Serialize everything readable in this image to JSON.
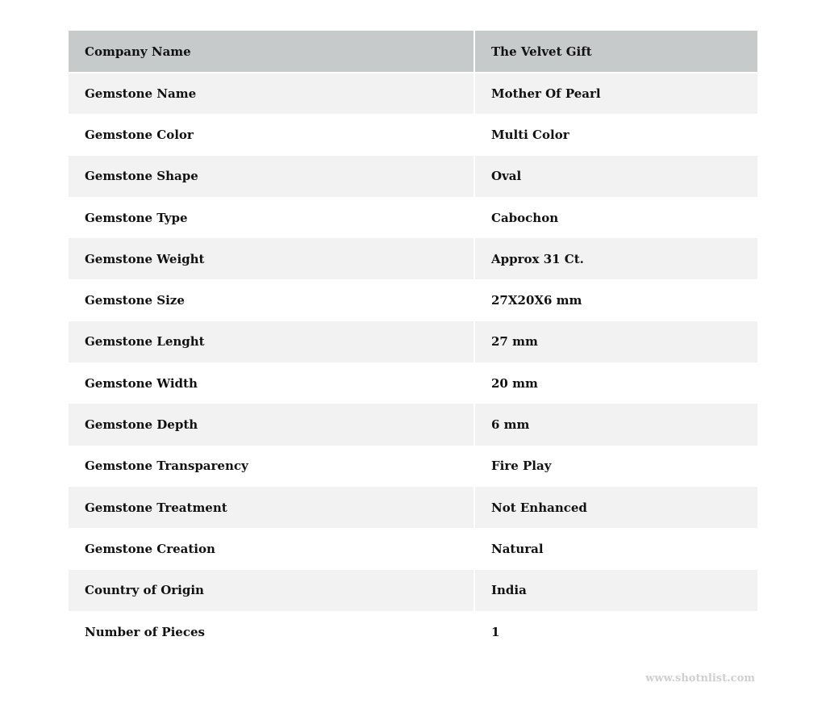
{
  "table": {
    "header": {
      "label": "Company Name",
      "value": "The Velvet Gift"
    },
    "rows": [
      {
        "label": "Gemstone Name",
        "value": "Mother Of Pearl"
      },
      {
        "label": "Gemstone Color",
        "value": "Multi Color"
      },
      {
        "label": "Gemstone Shape",
        "value": "Oval"
      },
      {
        "label": "Gemstone Type",
        "value": "Cabochon"
      },
      {
        "label": "Gemstone Weight",
        "value": "Approx 31 Ct."
      },
      {
        "label": "Gemstone Size",
        "value": "27X20X6 mm"
      },
      {
        "label": "Gemstone Lenght",
        "value": "27 mm"
      },
      {
        "label": "Gemstone Width",
        "value": "20 mm"
      },
      {
        "label": "Gemstone Depth",
        "value": "6 mm"
      },
      {
        "label": "Gemstone Transparency",
        "value": "Fire Play"
      },
      {
        "label": "Gemstone Treatment",
        "value": "Not Enhanced"
      },
      {
        "label": "Gemstone Creation",
        "value": "Natural"
      },
      {
        "label": "Country of Origin",
        "value": "India"
      },
      {
        "label": "Number of Pieces",
        "value": "1"
      }
    ]
  },
  "watermark": "www.shotnlist.com"
}
